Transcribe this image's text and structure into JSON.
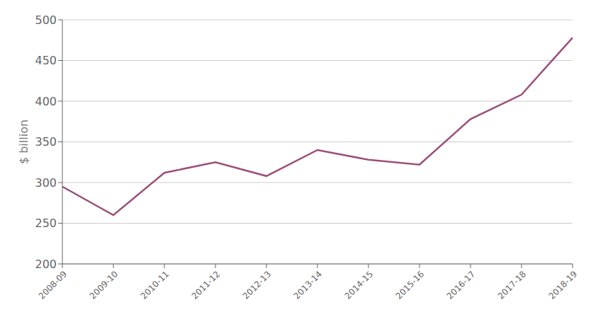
{
  "chart_data": {
    "type": "line",
    "categories": [
      "2008-09",
      "2009-10",
      "2010-11",
      "2011-12",
      "2012-13",
      "2013-14",
      "2014-15",
      "2015-16",
      "2016-17",
      "2017-18",
      "2018-19"
    ],
    "values": [
      295,
      260,
      312,
      325,
      308,
      340,
      328,
      322,
      378,
      408,
      478
    ],
    "color": "#9b4f7a",
    "ylabel": "$ billion",
    "ylim": [
      200,
      500
    ],
    "yticks": [
      200,
      250,
      300,
      350,
      400,
      450,
      500
    ],
    "grid": true
  }
}
